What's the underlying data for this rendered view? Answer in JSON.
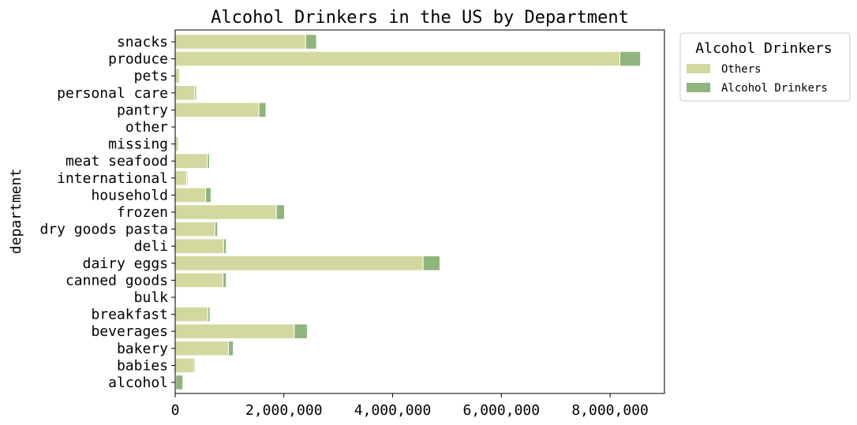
{
  "chart_data": {
    "type": "bar",
    "orientation": "horizontal",
    "stacked": true,
    "title": "Alcohol Drinkers in the US by Department",
    "xlabel": "",
    "ylabel": "department",
    "xlim": [
      0,
      9000000
    ],
    "xticks": [
      0,
      2000000,
      4000000,
      6000000,
      8000000
    ],
    "xtick_labels": [
      "0",
      "2,000,000",
      "4,000,000",
      "6,000,000",
      "8,000,000"
    ],
    "categories": [
      "snacks",
      "produce",
      "pets",
      "personal care",
      "pantry",
      "other",
      "missing",
      "meat seafood",
      "international",
      "household",
      "frozen",
      "dry goods pasta",
      "deli",
      "dairy eggs",
      "canned goods",
      "bulk",
      "breakfast",
      "beverages",
      "bakery",
      "babies",
      "alcohol"
    ],
    "series": [
      {
        "name": "Others",
        "color": "#d3d89e",
        "values": [
          2400000,
          8180000,
          80000,
          360000,
          1540000,
          20000,
          60000,
          590000,
          210000,
          560000,
          1860000,
          730000,
          890000,
          4560000,
          880000,
          20000,
          600000,
          2190000,
          980000,
          350000,
          10000
        ]
      },
      {
        "name": "Alcohol Drinkers",
        "color": "#8fb57c",
        "values": [
          200000,
          380000,
          10000,
          30000,
          130000,
          5000,
          5000,
          40000,
          20000,
          100000,
          150000,
          50000,
          50000,
          310000,
          60000,
          5000,
          40000,
          240000,
          90000,
          20000,
          130000
        ]
      }
    ],
    "legend": {
      "title": "Alcohol Drinkers",
      "position": "outside-top-right"
    }
  }
}
